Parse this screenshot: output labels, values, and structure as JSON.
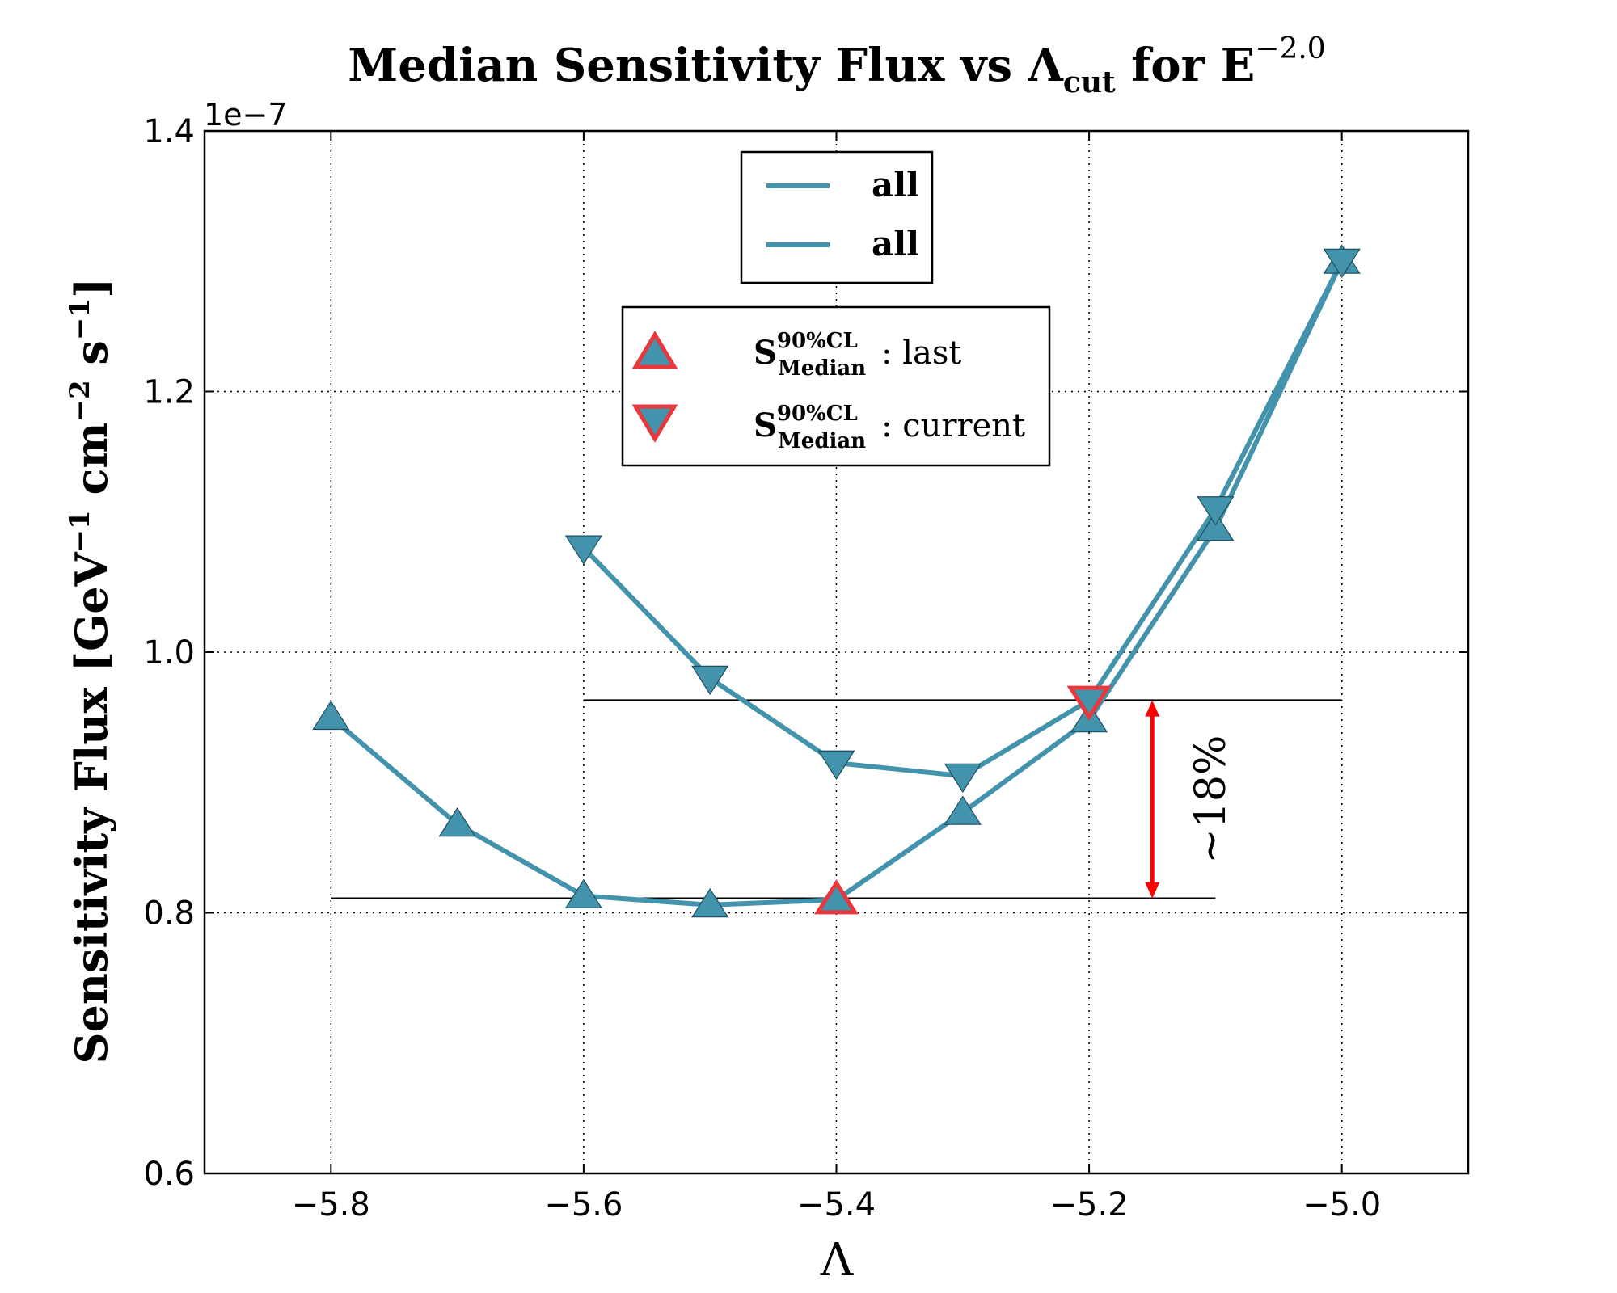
{
  "chart_data": {
    "type": "line",
    "title": {
      "prefix": "Median Sensitivity Flux vs Λ",
      "sub": "cut",
      "mid": " for E",
      "sup": "−2.0"
    },
    "xlabel": "Λ",
    "ylabel": {
      "main": "Sensitivity Flux [GeV",
      "sup1": "−1",
      "mid": " cm",
      "sup2": "−2",
      "mid2": " s",
      "sup3": "−1",
      "end": "]"
    },
    "y_offset_label": "1e−7",
    "xlim": [
      -5.9,
      -4.9
    ],
    "ylim": [
      0.6,
      1.4
    ],
    "xticks": [
      -5.8,
      -5.6,
      -5.4,
      -5.2,
      -5.0
    ],
    "xtick_labels": [
      "−5.8",
      "−5.6",
      "−5.4",
      "−5.2",
      "−5.0"
    ],
    "yticks": [
      0.6,
      0.8,
      1.0,
      1.2,
      1.4
    ],
    "ytick_labels": [
      "0.6",
      "0.8",
      "1.0",
      "1.2",
      "1.4"
    ],
    "grid": true,
    "series": [
      {
        "name": "all",
        "marker": "triangle-up",
        "x": [
          -5.8,
          -5.7,
          -5.6,
          -5.5,
          -5.4,
          -5.3,
          -5.2,
          -5.1,
          -5.0
        ],
        "values": [
          0.95,
          0.868,
          0.813,
          0.806,
          0.81,
          0.877,
          0.948,
          1.095,
          1.3
        ]
      },
      {
        "name": "all",
        "marker": "triangle-down",
        "x": [
          -5.6,
          -5.5,
          -5.4,
          -5.3,
          -5.2,
          -5.1,
          -5.0
        ],
        "values": [
          1.08,
          0.98,
          0.915,
          0.905,
          0.963,
          1.11,
          1.3
        ]
      }
    ],
    "highlight_points": [
      {
        "label_main": "S",
        "label_sup": "90%CL",
        "label_sub": "Median",
        "label_suffix": ": last",
        "marker": "triangle-up",
        "x": -5.4,
        "y": 0.81
      },
      {
        "label_main": "S",
        "label_sup": "90%CL",
        "label_sub": "Median",
        "label_suffix": ": current",
        "marker": "triangle-down",
        "x": -5.2,
        "y": 0.963
      }
    ],
    "reference_lines": [
      {
        "y": 0.963,
        "x_from": -5.6,
        "x_to": -5.0
      },
      {
        "y": 0.811,
        "x_from": -5.8,
        "x_to": -5.1
      }
    ],
    "annotation": {
      "text": "~18%",
      "arrow_x": -5.15,
      "y_from": 0.811,
      "y_to": 0.963
    },
    "legend_placement": "upper-center",
    "colors": {
      "series": "#4293AB",
      "highlight_edge": "#E8383D",
      "arrow": "#FF0000",
      "reference": "#000000"
    }
  }
}
